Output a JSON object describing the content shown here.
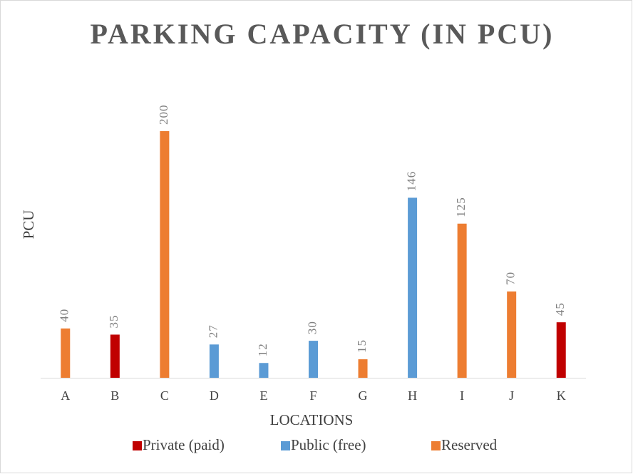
{
  "chart_data": {
    "type": "bar",
    "title": "PARKING CAPACITY (IN PCU)",
    "x_label": "LOCATIONS",
    "y_label": "PCU",
    "categories": [
      "A",
      "B",
      "C",
      "D",
      "E",
      "F",
      "G",
      "H",
      "I",
      "J",
      "K"
    ],
    "series": [
      {
        "name": "Private (paid)",
        "color": "#c00000",
        "values": [
          null,
          35,
          null,
          null,
          null,
          null,
          null,
          null,
          null,
          null,
          45
        ]
      },
      {
        "name": "Public (free)",
        "color": "#5b9bd5",
        "values": [
          null,
          null,
          null,
          27,
          12,
          30,
          null,
          146,
          null,
          null,
          null
        ]
      },
      {
        "name": "Reserved",
        "color": "#ed7d31",
        "values": [
          40,
          null,
          200,
          null,
          null,
          null,
          15,
          null,
          125,
          70,
          null
        ]
      }
    ],
    "ylim": [
      0,
      200
    ]
  }
}
